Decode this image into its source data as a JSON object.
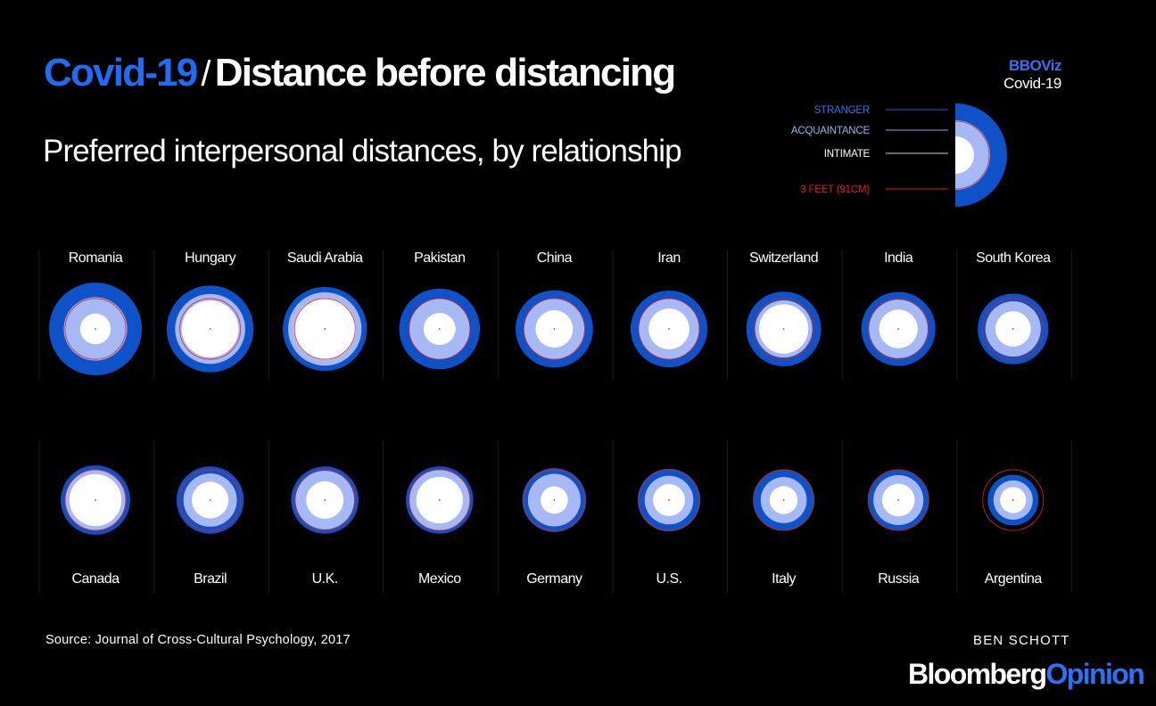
{
  "header": {
    "title_prefix": "Covid-19",
    "title_separator": "/",
    "title_main": "Distance before distancing",
    "subtitle": "Preferred interpersonal distances, by relationship"
  },
  "brand": {
    "line1": "BBOViz",
    "line2": "Covid-19"
  },
  "legend": {
    "stranger": "STRANGER",
    "acquaintance": "ACQUAINTANCE",
    "intimate": "INTIMATE",
    "reference": "3 FEET (91CM)"
  },
  "footer": {
    "source": "Source: Journal of Cross-Cultural Psychology, 2017",
    "author": "BEN SCHOTT",
    "logo_part1": "Bloomberg",
    "logo_part2": "Opinion"
  },
  "colors": {
    "background": "#000000",
    "stranger": "#0d52c9",
    "acquaintance": "#a6b9f5",
    "intimate": "#ffffff",
    "reference": "#e02020",
    "accent": "#1f6cf5"
  },
  "chart_data": {
    "type": "concentric-circles",
    "unit": "cm",
    "reference_distance": 91,
    "series_names": [
      "Stranger",
      "Acquaintance",
      "Intimate"
    ],
    "countries": [
      {
        "name": "Romania",
        "row": 1,
        "stranger": 139,
        "acquaintance": 95,
        "intimate": 46
      },
      {
        "name": "Hungary",
        "row": 1,
        "stranger": 130,
        "acquaintance": 105,
        "intimate": 85
      },
      {
        "name": "Saudi Arabia",
        "row": 1,
        "stranger": 126,
        "acquaintance": 110,
        "intimate": 93
      },
      {
        "name": "Pakistan",
        "row": 1,
        "stranger": 121,
        "acquaintance": 91,
        "intimate": 48
      },
      {
        "name": "China",
        "row": 1,
        "stranger": 116,
        "acquaintance": 92,
        "intimate": 56
      },
      {
        "name": "Iran",
        "row": 1,
        "stranger": 115,
        "acquaintance": 90,
        "intimate": 61
      },
      {
        "name": "Switzerland",
        "row": 1,
        "stranger": 112,
        "acquaintance": 86,
        "intimate": 74
      },
      {
        "name": "India",
        "row": 1,
        "stranger": 111,
        "acquaintance": 88,
        "intimate": 58
      },
      {
        "name": "South Korea",
        "row": 1,
        "stranger": 106,
        "acquaintance": 83,
        "intimate": 53
      },
      {
        "name": "Canada",
        "row": 2,
        "stranger": 104,
        "acquaintance": 90,
        "intimate": 78
      },
      {
        "name": "Brazil",
        "row": 2,
        "stranger": 101,
        "acquaintance": 80,
        "intimate": 55
      },
      {
        "name": "U.K.",
        "row": 2,
        "stranger": 101,
        "acquaintance": 88,
        "intimate": 56
      },
      {
        "name": "Mexico",
        "row": 2,
        "stranger": 101,
        "acquaintance": 91,
        "intimate": 70
      },
      {
        "name": "Germany",
        "row": 2,
        "stranger": 96,
        "acquaintance": 79,
        "intimate": 41
      },
      {
        "name": "U.S.",
        "row": 2,
        "stranger": 94,
        "acquaintance": 73,
        "intimate": 48
      },
      {
        "name": "Italy",
        "row": 2,
        "stranger": 91,
        "acquaintance": 69,
        "intimate": 42
      },
      {
        "name": "Russia",
        "row": 2,
        "stranger": 90,
        "acquaintance": 75,
        "intimate": 49
      },
      {
        "name": "Argentina",
        "row": 2,
        "stranger": 76,
        "acquaintance": 59,
        "intimate": 39
      }
    ]
  }
}
